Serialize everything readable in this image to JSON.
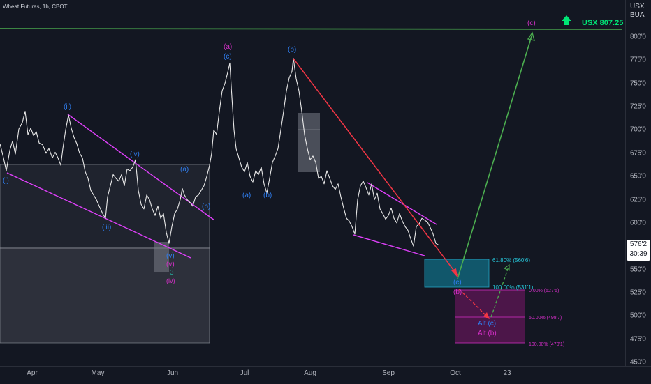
{
  "header": {
    "symbol": "Wheat Futures, 1h, CBOT"
  },
  "price_axis": {
    "currency_line1": "USX",
    "currency_line2": "BUA",
    "current_price": "576'2",
    "countdown": "30:39"
  },
  "colors": {
    "background": "#131722",
    "price_line": "#ffffff",
    "wave_blue": "#2f7ef0",
    "wave_magenta": "#d62fc9",
    "trend_line": "#e440e0",
    "projection_green": "#4caf50",
    "projection_red": "#f23645",
    "target_green": "#00e676",
    "fib_teal": "#1f8fa8",
    "fib_purple": "#7b1f6e"
  },
  "chart_data": {
    "type": "line",
    "title": "",
    "xlabel": "",
    "ylabel": "",
    "ylim": [
      4500,
      8200
    ],
    "grid": false,
    "x_ticks": [
      "Apr",
      "May",
      "Jun",
      "Jul",
      "Aug",
      "Sep",
      "Oct",
      "23"
    ],
    "y_ticks": [
      {
        "value": 8000,
        "label": "800'0"
      },
      {
        "value": 7750,
        "label": "775'0"
      },
      {
        "value": 7500,
        "label": "750'0"
      },
      {
        "value": 7250,
        "label": "725'0"
      },
      {
        "value": 7000,
        "label": "700'0"
      },
      {
        "value": 6750,
        "label": "675'0"
      },
      {
        "value": 6500,
        "label": "650'0"
      },
      {
        "value": 6250,
        "label": "625'0"
      },
      {
        "value": 6000,
        "label": "600'0"
      },
      {
        "value": 5500,
        "label": "550'0"
      },
      {
        "value": 5250,
        "label": "525'0"
      },
      {
        "value": 5000,
        "label": "500'0"
      },
      {
        "value": 4750,
        "label": "475'0"
      },
      {
        "value": 4500,
        "label": "450'0"
      }
    ],
    "price_path": [
      [
        0,
        6850
      ],
      [
        5,
        6700
      ],
      [
        9,
        6560
      ],
      [
        14,
        6780
      ],
      [
        18,
        6880
      ],
      [
        22,
        6740
      ],
      [
        27,
        7010
      ],
      [
        32,
        7080
      ],
      [
        36,
        7200
      ],
      [
        40,
        6950
      ],
      [
        44,
        7020
      ],
      [
        48,
        6940
      ],
      [
        52,
        6980
      ],
      [
        56,
        6860
      ],
      [
        61,
        6840
      ],
      [
        66,
        6750
      ],
      [
        70,
        6800
      ],
      [
        75,
        6700
      ],
      [
        79,
        6760
      ],
      [
        83,
        6700
      ],
      [
        87,
        6620
      ],
      [
        90,
        6800
      ],
      [
        94,
        7000
      ],
      [
        98,
        7160
      ],
      [
        102,
        7020
      ],
      [
        106,
        6920
      ],
      [
        110,
        6850
      ],
      [
        114,
        6750
      ],
      [
        118,
        6700
      ],
      [
        122,
        6550
      ],
      [
        126,
        6480
      ],
      [
        130,
        6350
      ],
      [
        134,
        6300
      ],
      [
        138,
        6250
      ],
      [
        142,
        6180
      ],
      [
        147,
        6100
      ],
      [
        151,
        6050
      ],
      [
        154,
        6280
      ],
      [
        158,
        6400
      ],
      [
        162,
        6520
      ],
      [
        166,
        6480
      ],
      [
        170,
        6450
      ],
      [
        174,
        6520
      ],
      [
        178,
        6400
      ],
      [
        182,
        6580
      ],
      [
        186,
        6560
      ],
      [
        190,
        6600
      ],
      [
        194,
        6680
      ],
      [
        198,
        6350
      ],
      [
        202,
        6200
      ],
      [
        206,
        6150
      ],
      [
        210,
        6300
      ],
      [
        214,
        6250
      ],
      [
        218,
        6150
      ],
      [
        222,
        6080
      ],
      [
        226,
        6180
      ],
      [
        230,
        6050
      ],
      [
        234,
        6100
      ],
      [
        238,
        5900
      ],
      [
        242,
        5780
      ],
      [
        246,
        5960
      ],
      [
        250,
        6100
      ],
      [
        254,
        6150
      ],
      [
        258,
        6250
      ],
      [
        261,
        6370
      ],
      [
        264,
        6300
      ],
      [
        268,
        6250
      ],
      [
        272,
        6220
      ],
      [
        276,
        6180
      ],
      [
        280,
        6280
      ],
      [
        284,
        6300
      ],
      [
        288,
        6350
      ],
      [
        292,
        6400
      ],
      [
        296,
        6500
      ],
      [
        300,
        6620
      ],
      [
        303,
        6750
      ],
      [
        306,
        7000
      ],
      [
        310,
        6950
      ],
      [
        314,
        7200
      ],
      [
        318,
        7420
      ],
      [
        322,
        7500
      ],
      [
        326,
        7620
      ],
      [
        329,
        7720
      ],
      [
        332,
        7350
      ],
      [
        335,
        7000
      ],
      [
        338,
        6800
      ],
      [
        342,
        6700
      ],
      [
        346,
        6600
      ],
      [
        350,
        6550
      ],
      [
        354,
        6650
      ],
      [
        358,
        6500
      ],
      [
        362,
        6440
      ],
      [
        366,
        6560
      ],
      [
        370,
        6520
      ],
      [
        374,
        6600
      ],
      [
        378,
        6420
      ],
      [
        382,
        6320
      ],
      [
        386,
        6480
      ],
      [
        390,
        6650
      ],
      [
        394,
        6720
      ],
      [
        398,
        6800
      ],
      [
        402,
        7000
      ],
      [
        406,
        7200
      ],
      [
        410,
        7420
      ],
      [
        414,
        7560
      ],
      [
        418,
        7630
      ],
      [
        420,
        7770
      ],
      [
        424,
        7550
      ],
      [
        428,
        7420
      ],
      [
        432,
        7200
      ],
      [
        436,
        6950
      ],
      [
        440,
        6800
      ],
      [
        444,
        6680
      ],
      [
        448,
        6720
      ],
      [
        452,
        6650
      ],
      [
        456,
        6480
      ],
      [
        460,
        6500
      ],
      [
        464,
        6420
      ],
      [
        468,
        6560
      ],
      [
        472,
        6480
      ],
      [
        476,
        6400
      ],
      [
        480,
        6360
      ],
      [
        484,
        6420
      ],
      [
        488,
        6280
      ],
      [
        492,
        6160
      ],
      [
        496,
        6050
      ],
      [
        500,
        6020
      ],
      [
        504,
        5960
      ],
      [
        508,
        5880
      ],
      [
        512,
        6250
      ],
      [
        516,
        6400
      ],
      [
        520,
        6450
      ],
      [
        524,
        6380
      ],
      [
        528,
        6300
      ],
      [
        532,
        6420
      ],
      [
        536,
        6250
      ],
      [
        540,
        6320
      ],
      [
        544,
        6150
      ],
      [
        548,
        6100
      ],
      [
        552,
        6040
      ],
      [
        556,
        6080
      ],
      [
        560,
        6160
      ],
      [
        564,
        6050
      ],
      [
        568,
        6000
      ],
      [
        572,
        6100
      ],
      [
        576,
        6020
      ],
      [
        580,
        5960
      ],
      [
        584,
        5920
      ],
      [
        588,
        5830
      ],
      [
        592,
        5750
      ],
      [
        596,
        5960
      ],
      [
        600,
        5990
      ],
      [
        604,
        6050
      ],
      [
        608,
        6030
      ],
      [
        612,
        6010
      ],
      [
        616,
        5950
      ],
      [
        620,
        5880
      ],
      [
        624,
        5780
      ],
      [
        628,
        5762
      ]
    ],
    "target": {
      "label": "USX 807.25",
      "value": 8072.5
    },
    "fib_levels_blue": [
      {
        "label": "61.80% (560'6)",
        "value": 5606
      },
      {
        "label": "100.00% (531'1)",
        "value": 5311
      }
    ],
    "fib_levels_magenta": [
      {
        "label": "0.00% (527'5)",
        "value": 5275
      },
      {
        "label": "50.00% (498'7)",
        "value": 4987
      },
      {
        "label": "100.00% (470'1)",
        "value": 4701
      }
    ]
  },
  "wave_labels": {
    "i": "(i)",
    "ii": "(ii)",
    "iii": "(iii)",
    "iv": "(iv)",
    "v": "(v)",
    "a_blue": "(a)",
    "b_blue": "(b)",
    "c_blue": "(c)",
    "a_magenta": "(a)",
    "b_magenta": "(b)",
    "c_magenta": "(c)",
    "v_magenta": "(v)",
    "iv_magenta": "(iv)",
    "three_teal": "3",
    "alt_c": "Alt.(c)",
    "alt_b": "Alt.(b)"
  }
}
